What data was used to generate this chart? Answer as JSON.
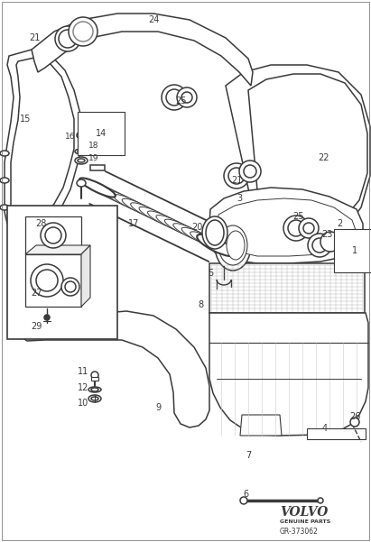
{
  "bg_color": "#ffffff",
  "line_color": "#3a3a3a",
  "fig_width": 4.11,
  "fig_height": 6.01,
  "dpi": 100,
  "volvo_text": "VOLVO",
  "volvo_sub": "GENUINE PARTS",
  "part_number": "GR-373062"
}
